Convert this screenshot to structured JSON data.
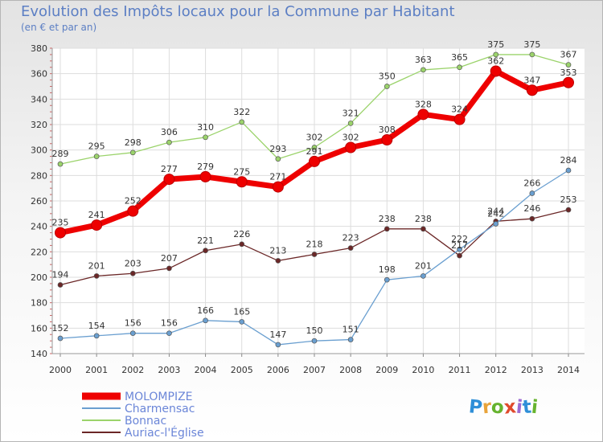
{
  "title": "Evolution des Impôts locaux pour la Commune par Habitant",
  "subtitle": "(en € et par an)",
  "logo": {
    "text": "Proxiti",
    "colors": [
      "#2f8fd8",
      "#e8a33a",
      "#66b32e",
      "#e04a2c",
      "#9c6ad2",
      "#2f8fd8",
      "#66b32e"
    ]
  },
  "chart_data": {
    "type": "line",
    "title": "Evolution des Impôts locaux pour la Commune par Habitant",
    "subtitle": "(en € et par an)",
    "x": [
      "2000",
      "2001",
      "2002",
      "2003",
      "2004",
      "2005",
      "2006",
      "2007",
      "2008",
      "2009",
      "2010",
      "2011",
      "2012",
      "2013",
      "2014"
    ],
    "ylim": [
      140,
      380
    ],
    "yticks": [
      140,
      160,
      180,
      200,
      220,
      240,
      260,
      280,
      300,
      320,
      340,
      360,
      380
    ],
    "grid": true,
    "legend_position": "bottom-left",
    "series": [
      {
        "name": "MOLOMPIZE",
        "color": "#ee0000",
        "values": [
          235,
          241,
          252,
          277,
          279,
          275,
          271,
          291,
          302,
          308,
          328,
          324,
          362,
          347,
          353
        ]
      },
      {
        "name": "Charmensac",
        "color": "#6a9fd0",
        "values": [
          152,
          154,
          156,
          156,
          166,
          165,
          147,
          150,
          151,
          198,
          201,
          222,
          242,
          266,
          284
        ]
      },
      {
        "name": "Bonnac",
        "color": "#9bd36b",
        "values": [
          289,
          295,
          298,
          306,
          310,
          322,
          293,
          302,
          321,
          350,
          363,
          365,
          375,
          375,
          367
        ]
      },
      {
        "name": "Auriac-l'Église",
        "color": "#6b2727",
        "values": [
          194,
          201,
          203,
          207,
          221,
          226,
          213,
          218,
          223,
          238,
          238,
          217,
          244,
          246,
          253
        ]
      }
    ]
  }
}
